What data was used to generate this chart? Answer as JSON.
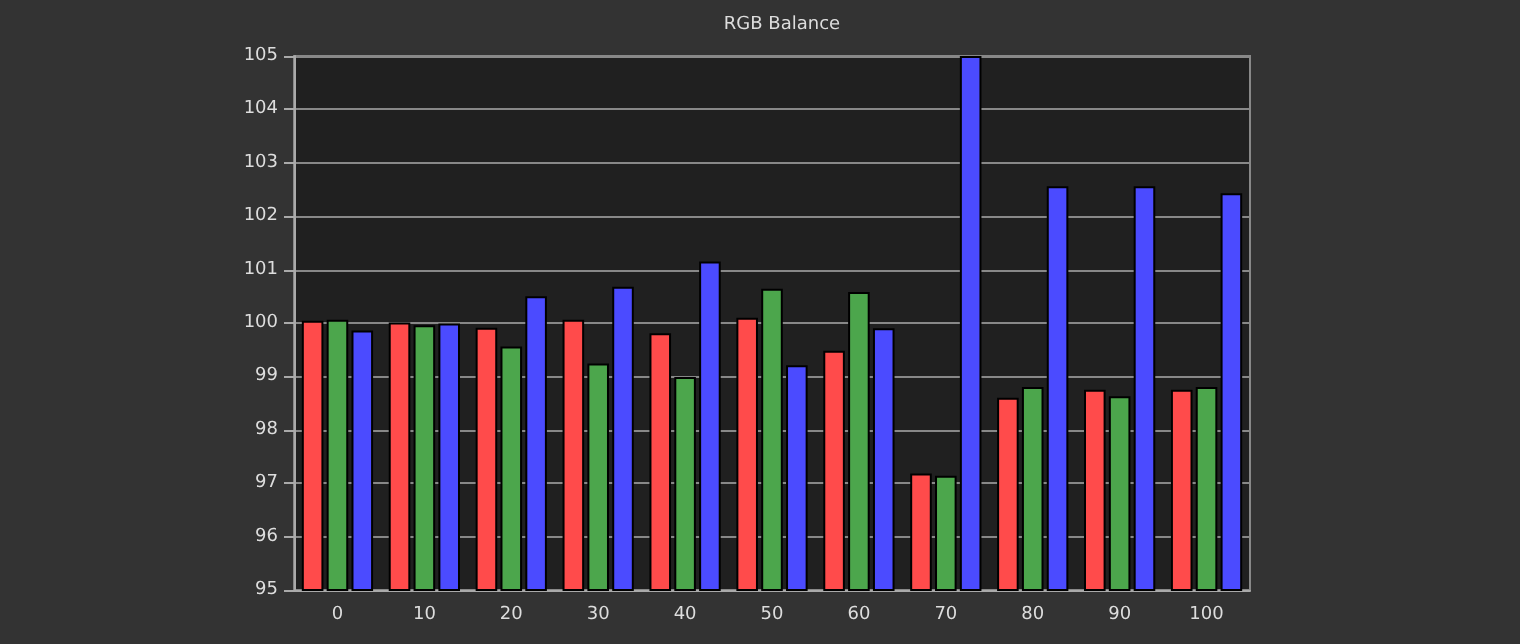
{
  "chart_data": {
    "type": "bar",
    "title": "RGB Balance",
    "categories": [
      "0",
      "10",
      "20",
      "30",
      "40",
      "50",
      "60",
      "70",
      "80",
      "90",
      "100"
    ],
    "series": [
      {
        "color": "#ff4b4b",
        "values": [
          100.04,
          100.01,
          99.91,
          100.06,
          99.81,
          100.1,
          99.48,
          97.18,
          98.6,
          98.75,
          98.75
        ]
      },
      {
        "color": "#4ca64c",
        "values": [
          100.06,
          99.96,
          99.56,
          99.24,
          98.99,
          100.64,
          100.58,
          97.14,
          98.8,
          98.63,
          98.8
        ]
      },
      {
        "color": "#4b4bff",
        "values": [
          99.86,
          99.99,
          100.5,
          100.68,
          101.15,
          99.21,
          99.9,
          105,
          102.56,
          102.56,
          102.43
        ]
      }
    ],
    "ylim": [
      95,
      105
    ],
    "yticks": [
      95,
      96,
      97,
      98,
      99,
      100,
      101,
      102,
      103,
      104,
      105
    ],
    "grid": "y"
  }
}
